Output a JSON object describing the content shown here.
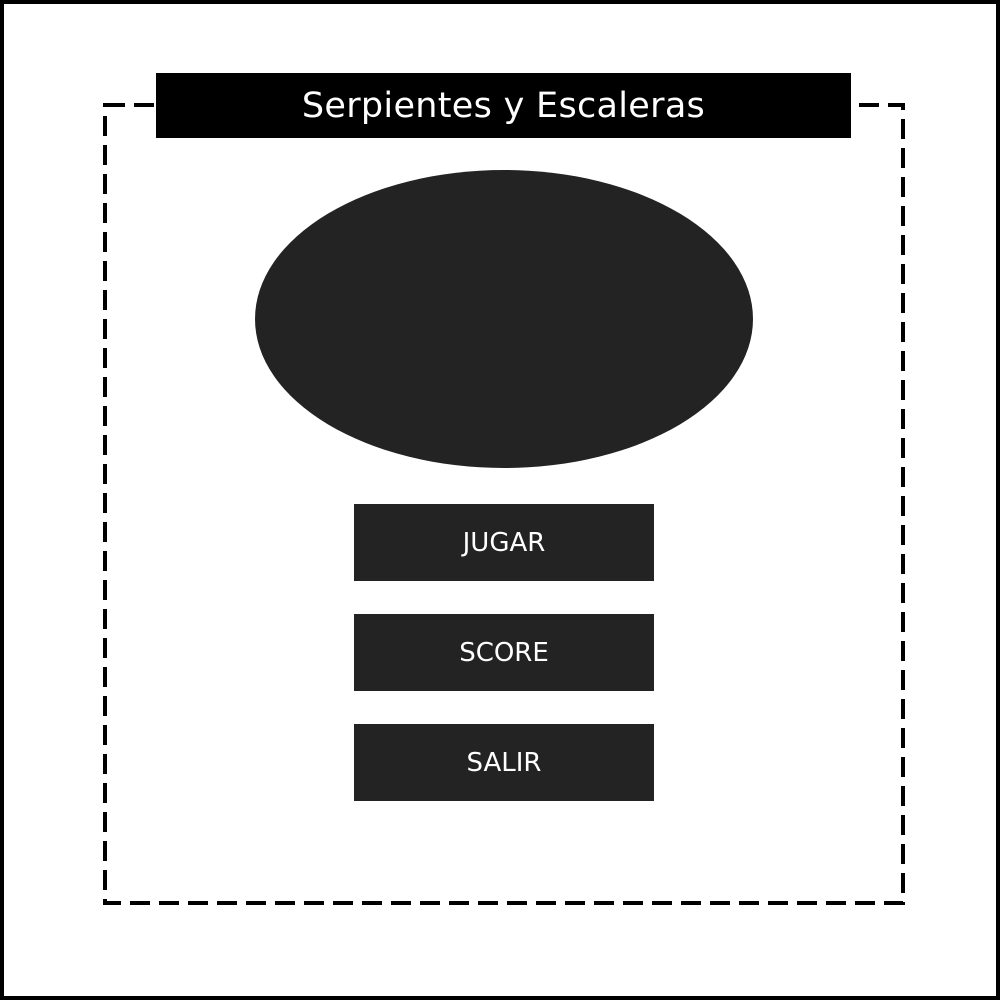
{
  "menu": {
    "title": "Serpientes y Escaleras",
    "buttons": {
      "play": "JUGAR",
      "score": "SCORE",
      "exit": "SALIR"
    }
  },
  "colors": {
    "frame": "#000000",
    "title_bar": "#000000",
    "button_fill": "#232323",
    "logo_fill": "#232323",
    "text": "#ffffff",
    "background": "#ffffff"
  },
  "icons": {
    "logo": "logo-placeholder-ellipse"
  }
}
